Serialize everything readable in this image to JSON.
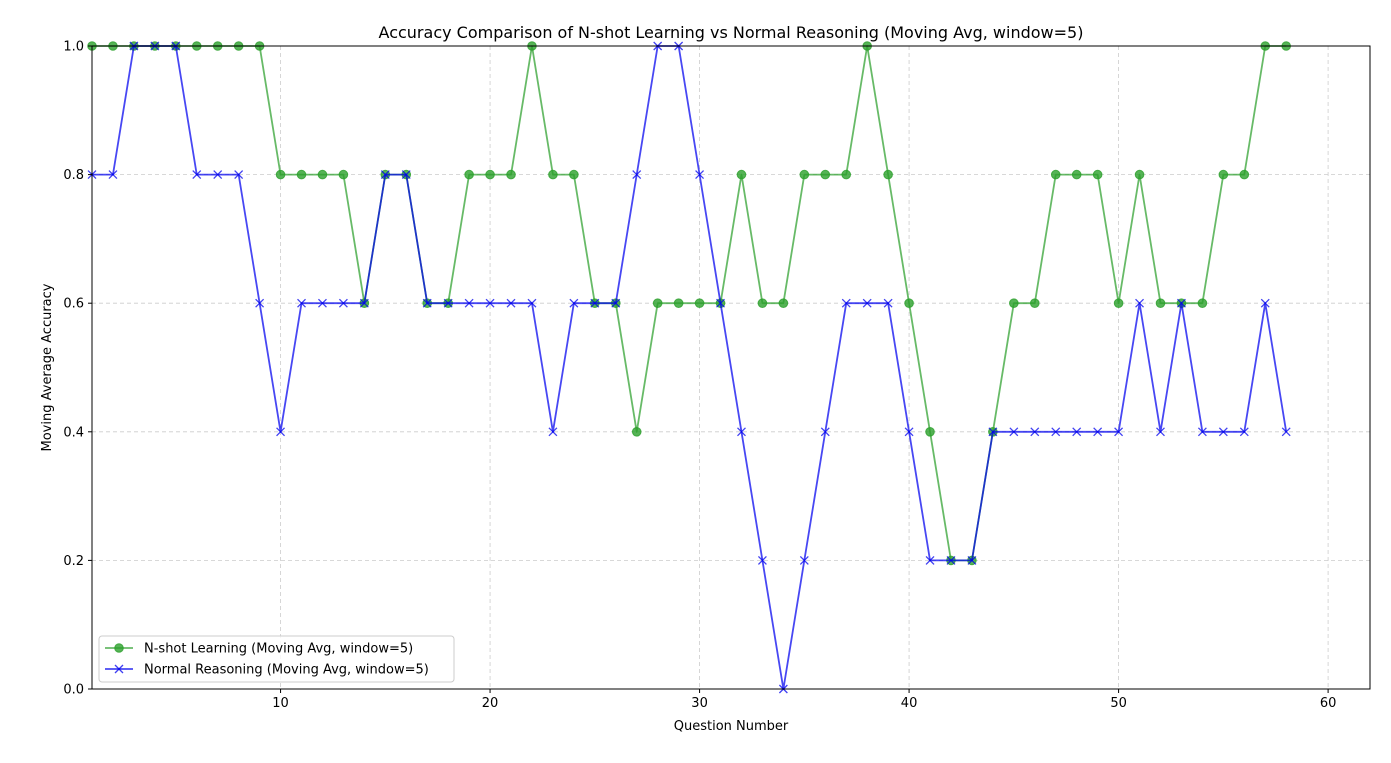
{
  "chart_data": {
    "type": "line",
    "title": "Accuracy Comparison of N-shot Learning vs Normal Reasoning (Moving Avg, window=5)",
    "xlabel": "Question Number",
    "ylabel": "Moving Average Accuracy",
    "xlim": [
      1,
      62
    ],
    "ylim": [
      0,
      1
    ],
    "xticks": [
      10,
      20,
      30,
      40,
      50,
      60
    ],
    "yticks": [
      0.0,
      0.2,
      0.4,
      0.6,
      0.8,
      1.0
    ],
    "xtick_labels": [
      "10",
      "20",
      "30",
      "40",
      "50",
      "60"
    ],
    "ytick_labels": [
      "0.0",
      "0.2",
      "0.4",
      "0.6",
      "0.8",
      "1.0"
    ],
    "grid": true,
    "legend_position": "bottom-left",
    "x": [
      1,
      2,
      3,
      4,
      5,
      6,
      7,
      8,
      9,
      10,
      11,
      12,
      13,
      14,
      15,
      16,
      17,
      18,
      19,
      20,
      21,
      22,
      23,
      24,
      25,
      26,
      27,
      28,
      29,
      30,
      31,
      32,
      33,
      34,
      35,
      36,
      37,
      38,
      39,
      40,
      41,
      42,
      43,
      44,
      45,
      46,
      47,
      48,
      49,
      50,
      51,
      52,
      53,
      54,
      55,
      56,
      57,
      58
    ],
    "series": [
      {
        "name": "N-shot Learning (Moving Avg, window=5)",
        "color": "#2ca02c",
        "marker": "circle",
        "values": [
          1.0,
          1.0,
          1.0,
          1.0,
          1.0,
          1.0,
          1.0,
          1.0,
          1.0,
          0.8,
          0.8,
          0.8,
          0.8,
          0.6,
          0.8,
          0.8,
          0.6,
          0.6,
          0.8,
          0.8,
          0.8,
          1.0,
          0.8,
          0.8,
          0.6,
          0.6,
          0.4,
          0.6,
          0.6,
          0.6,
          0.6,
          0.8,
          0.6,
          0.6,
          0.8,
          0.8,
          0.8,
          1.0,
          0.8,
          0.6,
          0.4,
          0.2,
          0.2,
          0.4,
          0.6,
          0.6,
          0.8,
          0.8,
          0.8,
          0.6,
          0.8,
          0.6,
          0.6,
          0.6,
          0.8,
          0.8,
          1.0,
          1.0
        ]
      },
      {
        "name": "Normal Reasoning (Moving Avg, window=5)",
        "color": "#0000ee",
        "marker": "x",
        "values": [
          0.8,
          0.8,
          1.0,
          1.0,
          1.0,
          0.8,
          0.8,
          0.8,
          0.6,
          0.4,
          0.6,
          0.6,
          0.6,
          0.6,
          0.8,
          0.8,
          0.6,
          0.6,
          0.6,
          0.6,
          0.6,
          0.6,
          0.4,
          0.6,
          0.6,
          0.6,
          0.8,
          1.0,
          1.0,
          0.8,
          0.6,
          0.4,
          0.2,
          0.0,
          0.2,
          0.4,
          0.6,
          0.6,
          0.6,
          0.4,
          0.2,
          0.2,
          0.2,
          0.4,
          0.4,
          0.4,
          0.4,
          0.4,
          0.4,
          0.4,
          0.6,
          0.4,
          0.6,
          0.4,
          0.4,
          0.4,
          0.6,
          0.4
        ]
      }
    ]
  }
}
